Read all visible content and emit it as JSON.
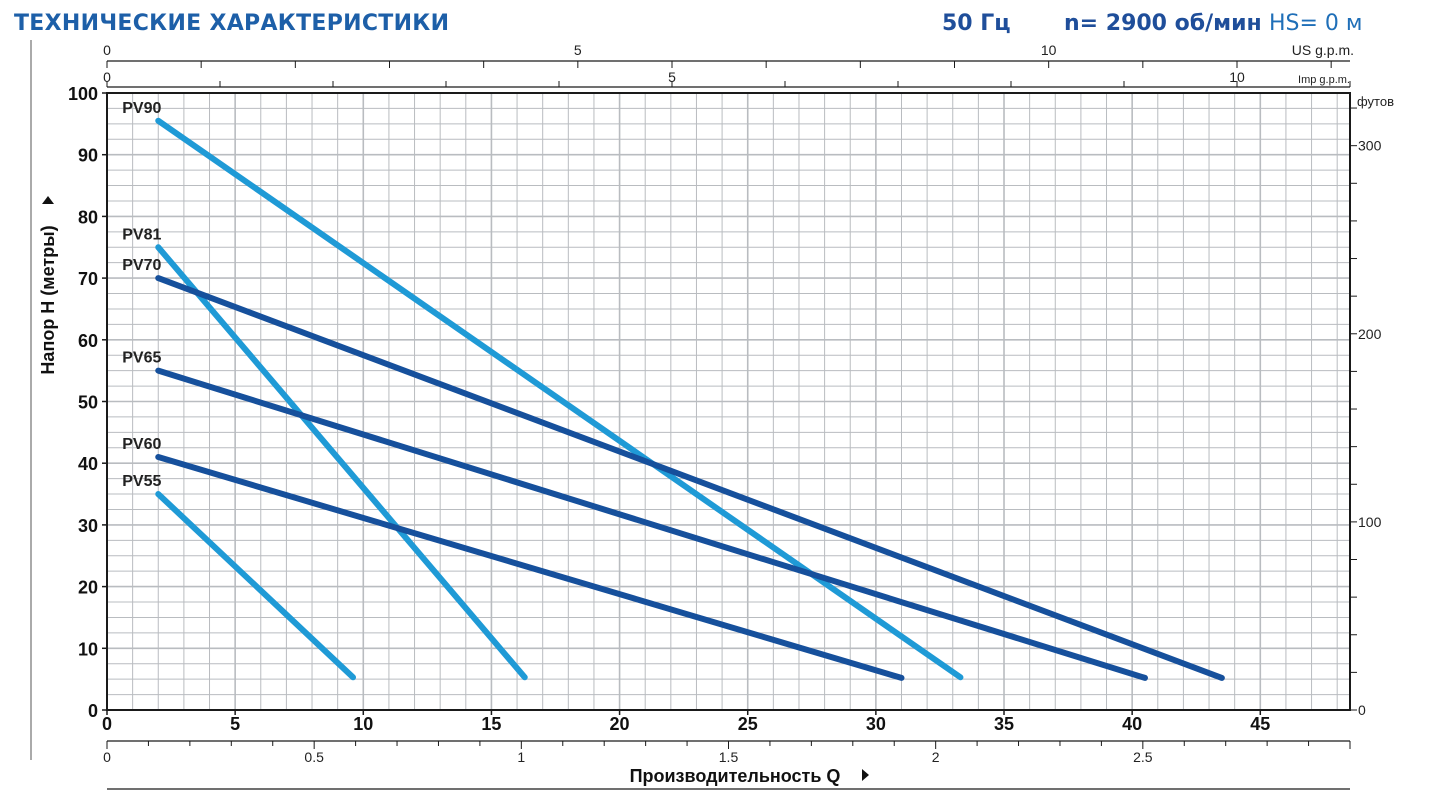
{
  "header": {
    "title": "ТЕХНИЧЕСКИЕ  ХАРАКТЕРИСТИКИ",
    "frequency": "50 Гц",
    "speed": "n= 2900 об/мин",
    "suction": "HS= 0 м"
  },
  "colors": {
    "light_curve": "#1f9ad6",
    "dark_curve": "#16509c",
    "grid": "#b9bcc0",
    "axis": "#1a1a1a",
    "header_blue": "#1d5fa8"
  },
  "chart_data": {
    "type": "line",
    "xlabel": "Производительность Q",
    "ylabel": "Напор H    (метры)",
    "x_unit_top_us": "US g.p.m.",
    "x_unit_top_imp": "Imp g.p.m.",
    "y_unit_right": "футов",
    "xlim": [
      0,
      48.5
    ],
    "ylim": [
      0,
      100
    ],
    "x_ticks": [
      0,
      5,
      10,
      15,
      20,
      25,
      30,
      35,
      40,
      45
    ],
    "y_ticks": [
      0,
      10,
      20,
      30,
      40,
      50,
      60,
      70,
      80,
      90,
      100
    ],
    "x2_bottom_lim": [
      0,
      3.0
    ],
    "x2_bottom_ticks": [
      0,
      0.5,
      1,
      1.5,
      2,
      2.5
    ],
    "x2_bottom_tick_labels": [
      "0",
      "0.5",
      "1",
      "1.5",
      "2",
      "2.5"
    ],
    "x_top_us_lim": [
      0,
      13.2
    ],
    "x_top_us_ticks": [
      0,
      5,
      10
    ],
    "x_top_imp_lim": [
      0,
      11.0
    ],
    "x_top_imp_ticks": [
      0,
      5,
      10
    ],
    "y_right_lim": [
      0,
      328
    ],
    "y_right_ticks": [
      0,
      100,
      200,
      300
    ],
    "series": [
      {
        "name": "PV90",
        "style": "light",
        "x": [
          2,
          33.3
        ],
        "y": [
          95.5,
          5.3
        ]
      },
      {
        "name": "PV81",
        "style": "light",
        "x": [
          2,
          16.3
        ],
        "y": [
          75,
          5.3
        ]
      },
      {
        "name": "PV70",
        "style": "dark",
        "x": [
          2,
          43.5
        ],
        "y": [
          70,
          5.2
        ]
      },
      {
        "name": "PV65",
        "style": "dark",
        "x": [
          2,
          40.5
        ],
        "y": [
          55,
          5.2
        ]
      },
      {
        "name": "PV60",
        "style": "dark",
        "x": [
          2,
          31
        ],
        "y": [
          41,
          5.2
        ]
      },
      {
        "name": "PV55",
        "style": "light",
        "x": [
          2,
          9.6
        ],
        "y": [
          35,
          5.3
        ]
      }
    ]
  }
}
